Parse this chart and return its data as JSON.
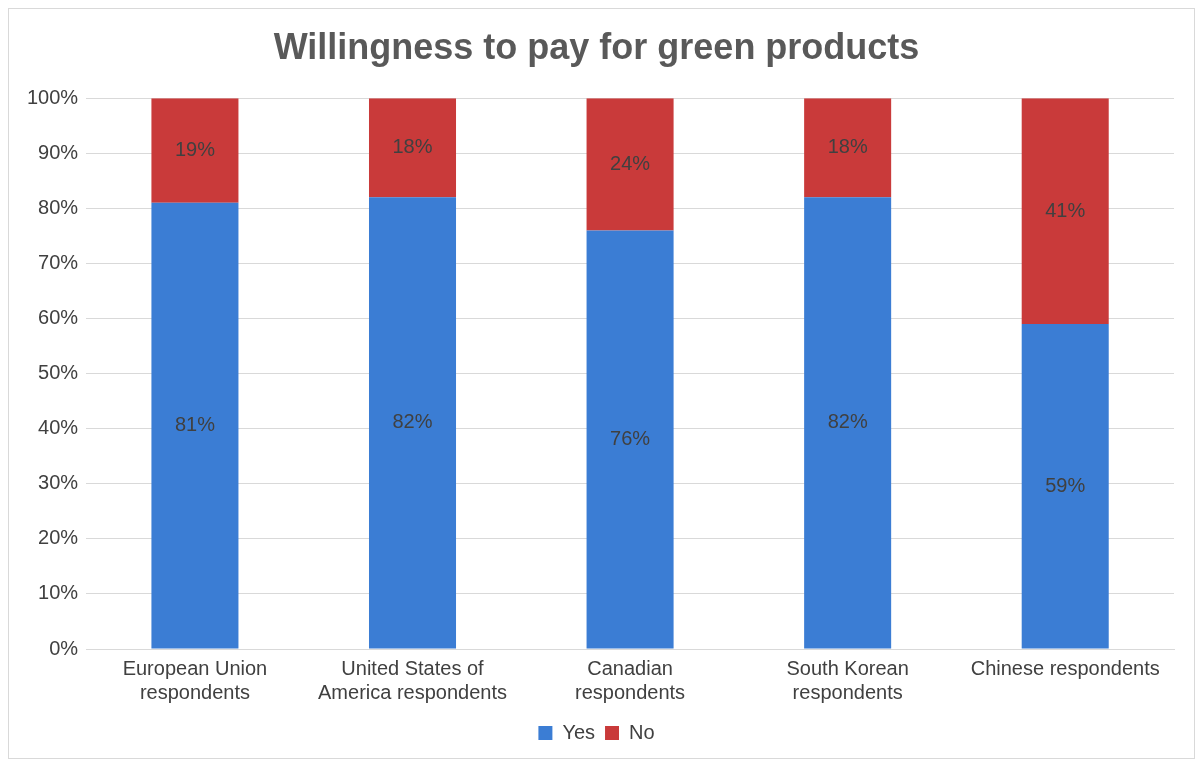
{
  "chart_data": {
    "type": "bar",
    "title": "Willingness to pay for green products",
    "categories": [
      "European Union respondents",
      "United States of America respondents",
      "Canadian respondents",
      "South Korean respondents",
      "Chinese respondents"
    ],
    "stacked": true,
    "series": [
      {
        "name": "Yes",
        "color": "#3b7dd4",
        "values": [
          81,
          82,
          76,
          82,
          59
        ],
        "value_labels": [
          "81%",
          "82%",
          "76%",
          "82%",
          "59%"
        ]
      },
      {
        "name": "No",
        "color": "#c93a3a",
        "values": [
          19,
          18,
          24,
          18,
          41
        ],
        "value_labels": [
          "19%",
          "18%",
          "24%",
          "18%",
          "41%"
        ]
      }
    ],
    "ylim": [
      0,
      100
    ],
    "yticks": [
      {
        "value": 0,
        "label": "0%"
      },
      {
        "value": 10,
        "label": "10%"
      },
      {
        "value": 20,
        "label": "20%"
      },
      {
        "value": 30,
        "label": "30%"
      },
      {
        "value": 40,
        "label": "40%"
      },
      {
        "value": 50,
        "label": "50%"
      },
      {
        "value": 60,
        "label": "60%"
      },
      {
        "value": 70,
        "label": "70%"
      },
      {
        "value": 80,
        "label": "80%"
      },
      {
        "value": 90,
        "label": "90%"
      },
      {
        "value": 100,
        "label": "100%"
      }
    ],
    "grid": "y",
    "legend": "bottom"
  }
}
